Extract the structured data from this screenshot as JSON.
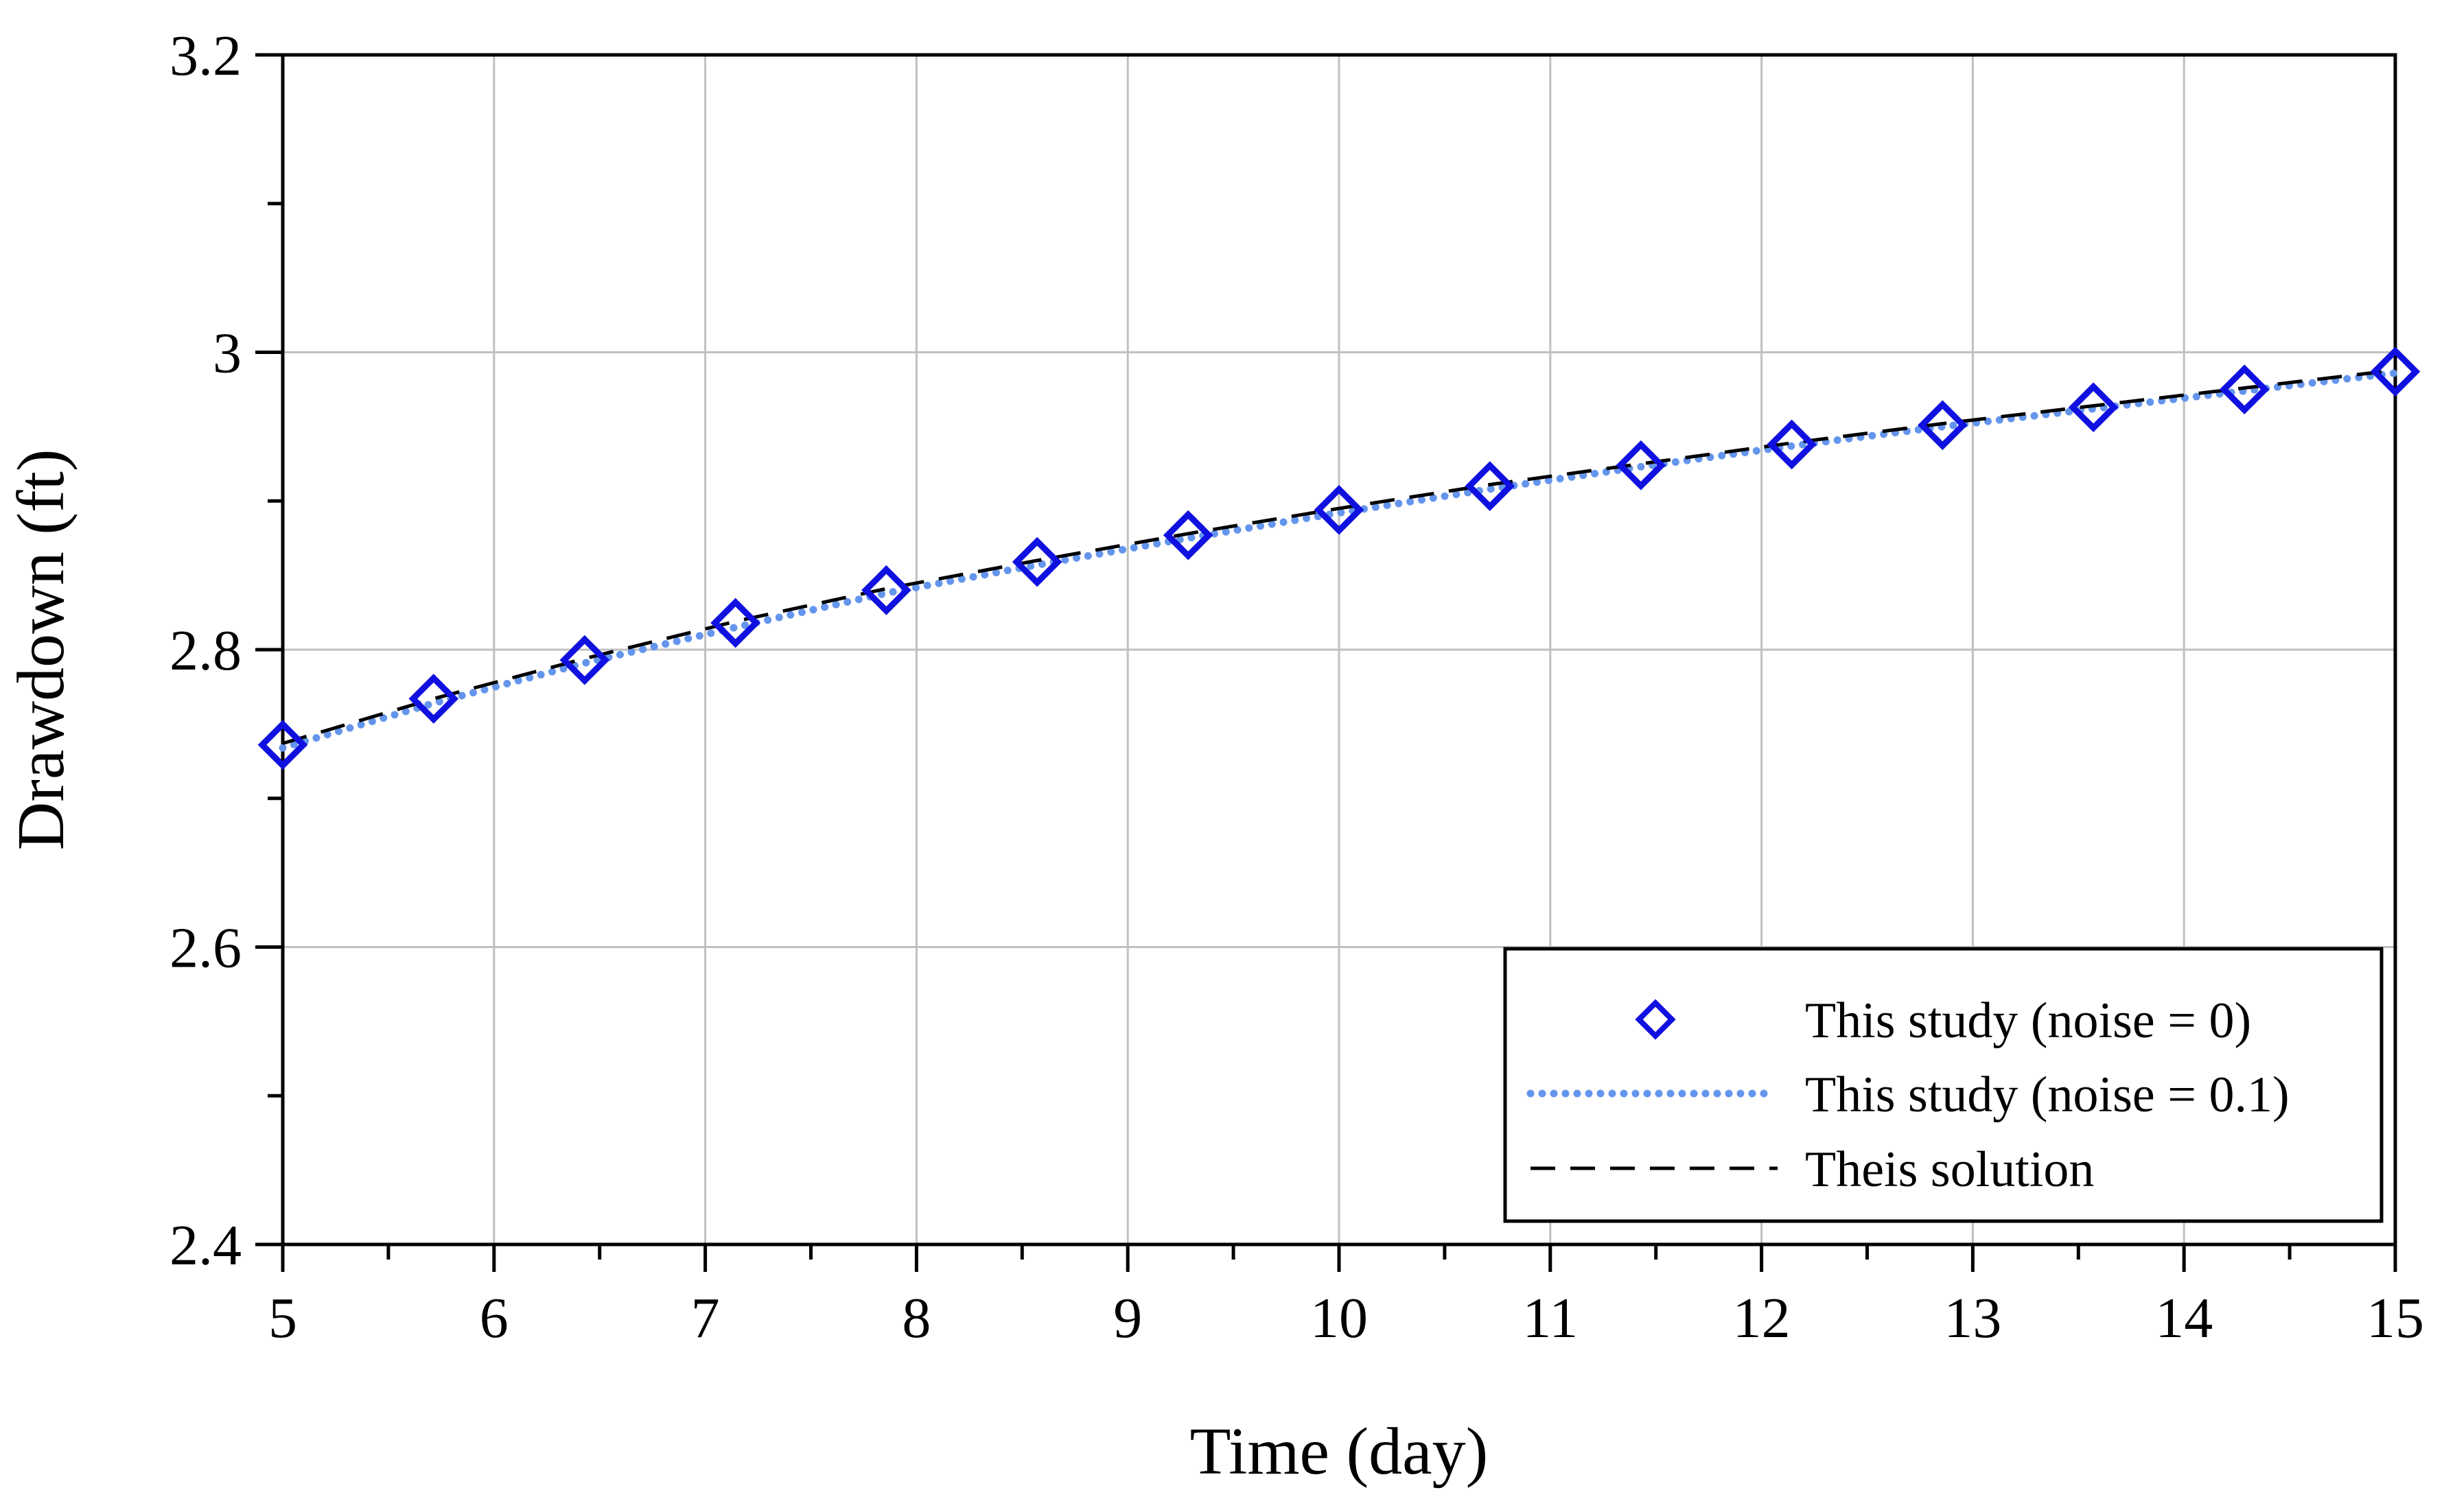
{
  "chart_data": {
    "type": "line",
    "xlabel": "Time (day)",
    "ylabel": "Drawdown (ft)",
    "xlim": [
      5,
      15
    ],
    "ylim": [
      2.4,
      3.2
    ],
    "xticks": [
      5,
      6,
      7,
      8,
      9,
      10,
      11,
      12,
      13,
      14,
      15
    ],
    "yticks": [
      2.4,
      2.6,
      2.8,
      3,
      3.2
    ],
    "xtick_labels": [
      "5",
      "6",
      "7",
      "8",
      "9",
      "10",
      "11",
      "12",
      "13",
      "14",
      "15"
    ],
    "ytick_labels": [
      "2.4",
      "2.6",
      "2.8",
      "3",
      "3.2"
    ],
    "grid": true,
    "legend_position": "bottom-right",
    "series": [
      {
        "name": "This study (noise = 0)",
        "style": "markers",
        "marker": "diamond-open",
        "color": "#1010e0",
        "x": [
          5.0,
          5.714,
          6.429,
          7.143,
          7.857,
          8.571,
          9.286,
          10.0,
          10.714,
          11.429,
          12.143,
          12.857,
          13.571,
          14.286,
          15.0
        ],
        "y": [
          2.736,
          2.767,
          2.793,
          2.818,
          2.84,
          2.859,
          2.877,
          2.894,
          2.91,
          2.924,
          2.938,
          2.951,
          2.963,
          2.975,
          2.987
        ]
      },
      {
        "name": "This study (noise = 0.1)",
        "style": "dotted",
        "color": "#6495ed",
        "x": [
          5.0,
          5.714,
          6.429,
          7.143,
          7.857,
          8.571,
          9.286,
          10.0,
          10.714,
          11.429,
          12.143,
          12.857,
          13.571,
          14.286,
          15.0
        ],
        "y": [
          2.734,
          2.764,
          2.791,
          2.815,
          2.838,
          2.857,
          2.875,
          2.892,
          2.908,
          2.923,
          2.937,
          2.95,
          2.962,
          2.974,
          2.986
        ]
      },
      {
        "name": "Theis solution",
        "style": "dashed",
        "color": "#000000",
        "x": [
          5.0,
          5.714,
          6.429,
          7.143,
          7.857,
          8.571,
          9.286,
          10.0,
          10.714,
          11.429,
          12.143,
          12.857,
          13.571,
          14.286,
          15.0
        ],
        "y": [
          2.737,
          2.767,
          2.794,
          2.819,
          2.841,
          2.86,
          2.878,
          2.895,
          2.911,
          2.925,
          2.939,
          2.952,
          2.964,
          2.976,
          2.988
        ]
      }
    ]
  }
}
